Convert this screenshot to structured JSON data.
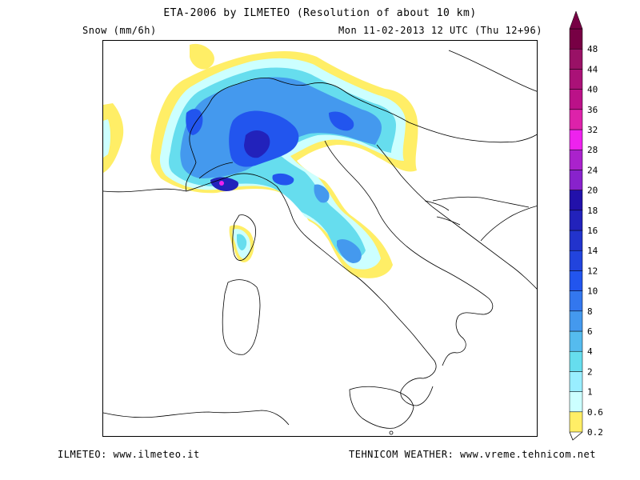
{
  "header": {
    "title": "ETA-2006 by ILMETEO (Resolution of about 10 km)",
    "variable": "Snow (mm/6h)",
    "valid_time": "Mon 11-02-2013 12 UTC (Thu 12+96)"
  },
  "footer": {
    "left": "ILMETEO: www.ilmeteo.it",
    "right": "TEHNICOM WEATHER: www.vreme.tehnicom.net"
  },
  "legend": {
    "levels": [
      {
        "label": "0.2",
        "color": "#ffee66"
      },
      {
        "label": "0.6",
        "color": "#ccffff"
      },
      {
        "label": "1",
        "color": "#99eeff"
      },
      {
        "label": "2",
        "color": "#66ddee"
      },
      {
        "label": "4",
        "color": "#55bbee"
      },
      {
        "label": "6",
        "color": "#4499ee"
      },
      {
        "label": "8",
        "color": "#3377ee"
      },
      {
        "label": "10",
        "color": "#2255ee"
      },
      {
        "label": "12",
        "color": "#2244dd"
      },
      {
        "label": "14",
        "color": "#2233cc"
      },
      {
        "label": "16",
        "color": "#2222bb"
      },
      {
        "label": "18",
        "color": "#2211aa"
      },
      {
        "label": "20",
        "color": "#8822cc"
      },
      {
        "label": "24",
        "color": "#aa22cc"
      },
      {
        "label": "28",
        "color": "#ee22ee"
      },
      {
        "label": "32",
        "color": "#dd22aa"
      },
      {
        "label": "36",
        "color": "#bb1188"
      },
      {
        "label": "40",
        "color": "#aa1177"
      },
      {
        "label": "44",
        "color": "#991166"
      },
      {
        "label": "48",
        "color": "#770044"
      }
    ]
  }
}
